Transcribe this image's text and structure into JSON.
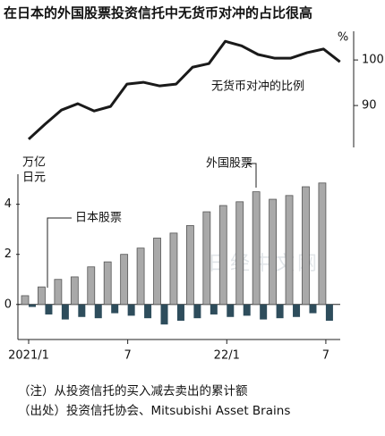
{
  "chart_data": [
    {
      "type": "line",
      "title": "在日本的外国股票投资信托中无货币对冲的占比很高",
      "series": [
        {
          "name": "无货币对冲的比例",
          "color": "#1a1a1a",
          "values": [
            82.6,
            85.9,
            89.0,
            90.4,
            88.8,
            89.8,
            94.7,
            95.1,
            94.3,
            94.7,
            98.4,
            99.2,
            104.1,
            103.1,
            101.2,
            100.4,
            100.4,
            101.6,
            102.4,
            99.6
          ]
        }
      ],
      "y_label": "%",
      "ylim": [
        80.8,
        106.3
      ],
      "yticks": [
        90,
        100
      ]
    },
    {
      "type": "bar",
      "categories": [
        "2021/1",
        null,
        null,
        null,
        null,
        null,
        "7",
        null,
        null,
        null,
        null,
        null,
        "22/1",
        null,
        null,
        null,
        null,
        null,
        "7"
      ],
      "series": [
        {
          "name": "外国股票",
          "color": "#a9a9a9",
          "values": [
            0.35,
            0.7,
            1.0,
            1.1,
            1.5,
            1.7,
            2.0,
            2.25,
            2.65,
            2.85,
            3.15,
            3.7,
            3.95,
            4.1,
            4.5,
            4.2,
            4.35,
            4.7,
            4.85
          ]
        },
        {
          "name": "日本股票",
          "color": "#2e4d5c",
          "values": [
            -0.1,
            -0.4,
            -0.6,
            -0.5,
            -0.55,
            -0.35,
            -0.45,
            -0.55,
            -0.8,
            -0.65,
            -0.55,
            -0.4,
            -0.5,
            -0.45,
            -0.6,
            -0.55,
            -0.5,
            -0.35,
            -0.65
          ]
        }
      ],
      "y_label": [
        "万亿",
        "日元"
      ],
      "ylim": [
        -1.4,
        5.2
      ],
      "yticks": [
        0,
        2,
        4
      ]
    }
  ],
  "notes": [
    "（注）从投资信托的买入减去卖出的累计额",
    "（出处）投资信托协会、Mitsubishi Asset Brains"
  ],
  "watermark": "日经中文网"
}
